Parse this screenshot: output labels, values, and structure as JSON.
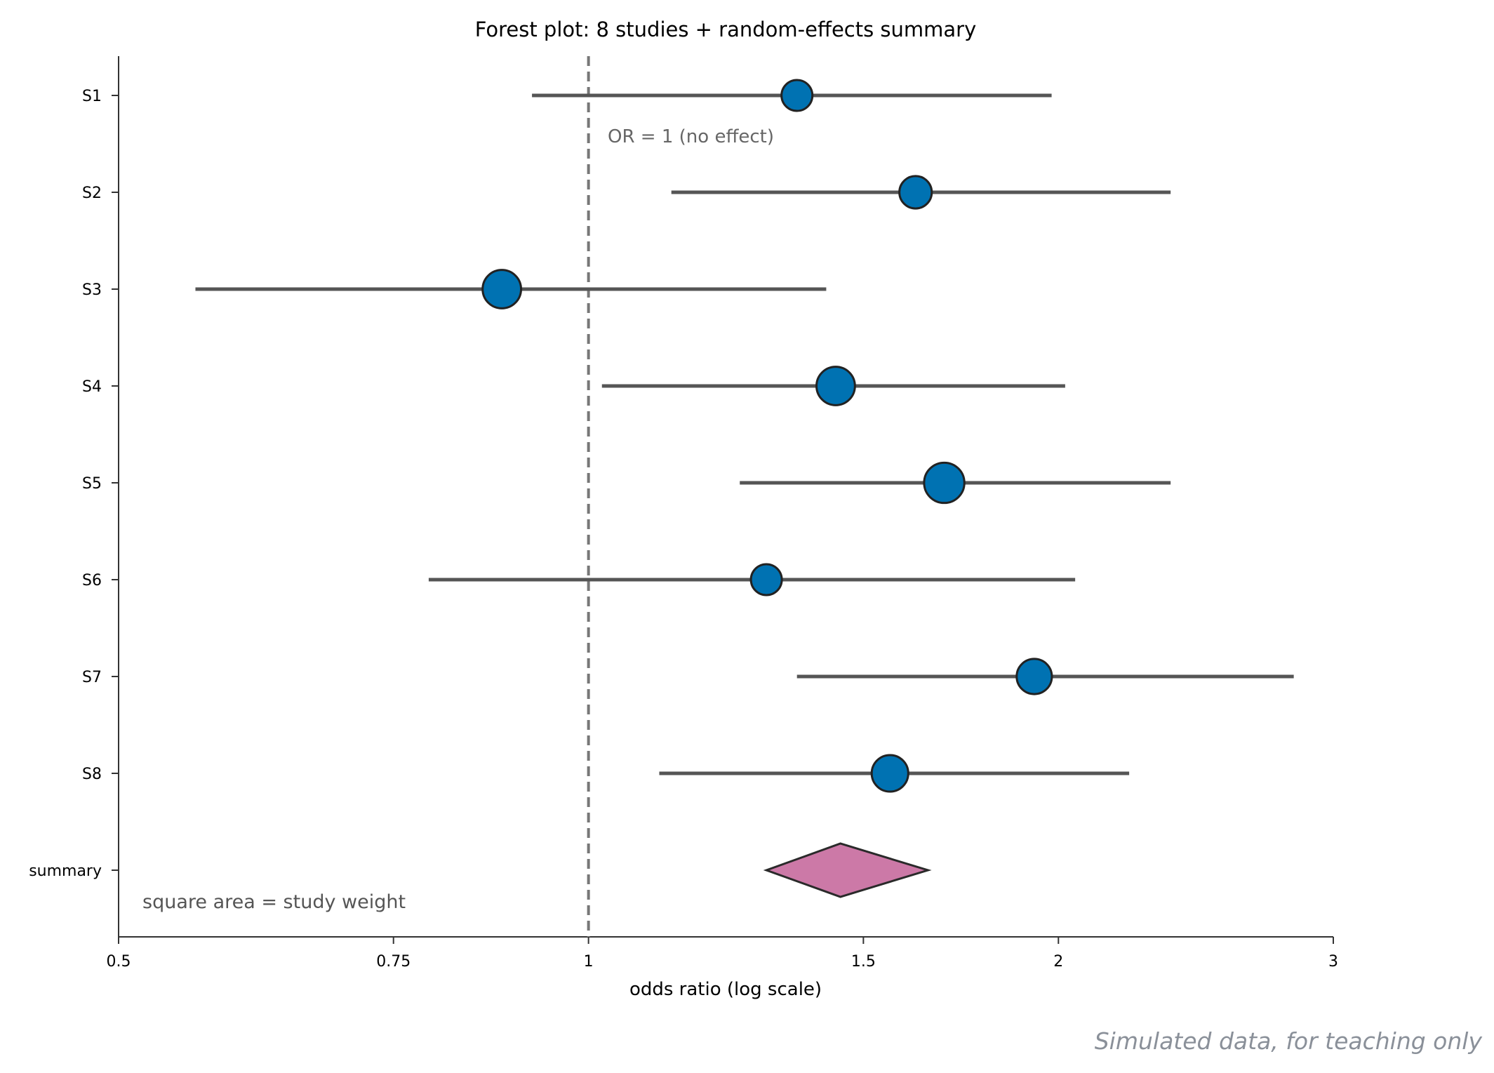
{
  "chart_data": {
    "type": "forest",
    "title": "Forest plot: 8 studies + random-effects summary",
    "xlabel": "odds ratio (log scale)",
    "x_scale": "log",
    "xlim": [
      0.5,
      3
    ],
    "xticks": [
      0.5,
      0.75,
      1,
      1.5,
      2,
      3
    ],
    "xtick_labels": [
      "0.5",
      "0.75",
      "1",
      "1.5",
      "2",
      "3"
    ],
    "reference_line": {
      "value": 1,
      "label": "OR = 1 (no effect)",
      "style": "dashed"
    },
    "studies": [
      {
        "name": "S1",
        "or": 1.36,
        "ci": [
          0.92,
          1.98
        ],
        "weight": 1.0
      },
      {
        "name": "S2",
        "or": 1.62,
        "ci": [
          1.13,
          2.36
        ],
        "weight": 1.1
      },
      {
        "name": "S3",
        "or": 0.88,
        "ci": [
          0.56,
          1.42
        ],
        "weight": 1.55
      },
      {
        "name": "S4",
        "or": 1.44,
        "ci": [
          1.02,
          2.02
        ],
        "weight": 1.55
      },
      {
        "name": "S5",
        "or": 1.69,
        "ci": [
          1.25,
          2.36
        ],
        "weight": 1.7
      },
      {
        "name": "S6",
        "or": 1.3,
        "ci": [
          0.79,
          2.05
        ],
        "weight": 1.0
      },
      {
        "name": "S7",
        "or": 1.93,
        "ci": [
          1.36,
          2.83
        ],
        "weight": 1.3
      },
      {
        "name": "S8",
        "or": 1.56,
        "ci": [
          1.11,
          2.22
        ],
        "weight": 1.4
      }
    ],
    "summary": {
      "name": "summary",
      "or": 1.45,
      "ci": [
        1.3,
        1.65
      ]
    },
    "annotation": "square area = study weight",
    "colors": {
      "marker": "#0072b2",
      "summary": "#cc79a7",
      "ci_line": "#555555",
      "ref_line": "#777777"
    }
  },
  "footer": "Simulated data, for teaching only"
}
